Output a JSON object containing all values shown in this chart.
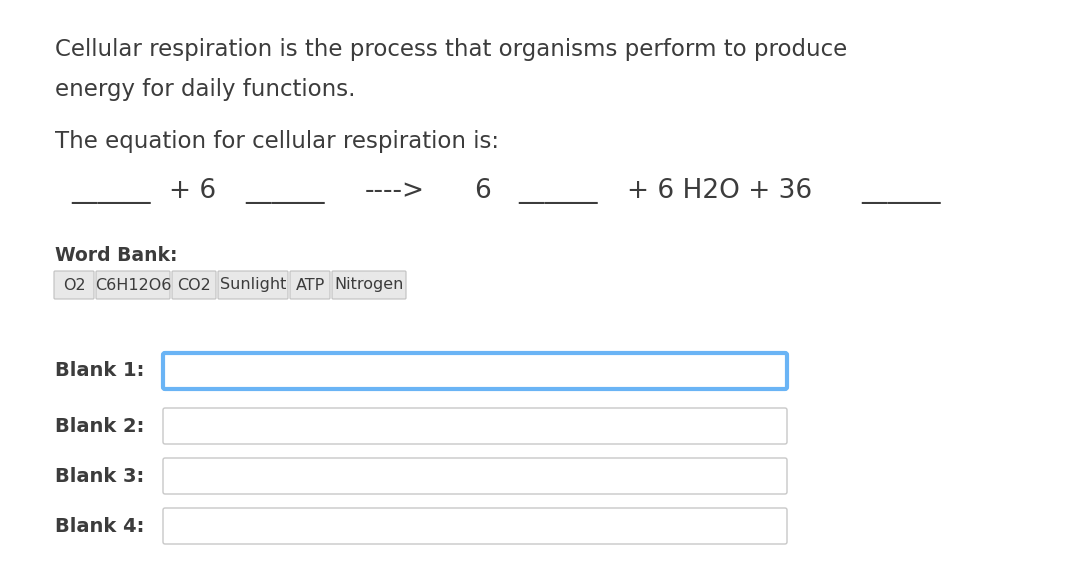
{
  "bg_color": "#ffffff",
  "title_text1": "Cellular respiration is the process that organisms perform to produce",
  "title_text2": "energy for daily functions.",
  "subtitle": "The equation for cellular respiration is:",
  "word_bank_label": "Word Bank:",
  "word_bank_items": [
    "O2",
    "C6H12O6",
    "CO2",
    "Sunlight",
    "ATP",
    "Nitrogen"
  ],
  "blank_labels": [
    "Blank 1:",
    "Blank 2:",
    "Blank 3:",
    "Blank 4:"
  ],
  "blank1_border_color": "#6ab4f5",
  "blank_border_color": "#c8c8c8",
  "text_color": "#3c3c3c",
  "word_bank_bg": "#e8e8e8",
  "word_bank_border": "#c0c0c0",
  "eq_parts": [
    [
      0.065,
      "______"
    ],
    [
      0.155,
      "+ 6"
    ],
    [
      0.225,
      "______"
    ],
    [
      0.335,
      "---->"
    ],
    [
      0.435,
      "6"
    ],
    [
      0.475,
      "______"
    ],
    [
      0.575,
      "+ 6 H2O + 36"
    ],
    [
      0.79,
      "______"
    ]
  ]
}
